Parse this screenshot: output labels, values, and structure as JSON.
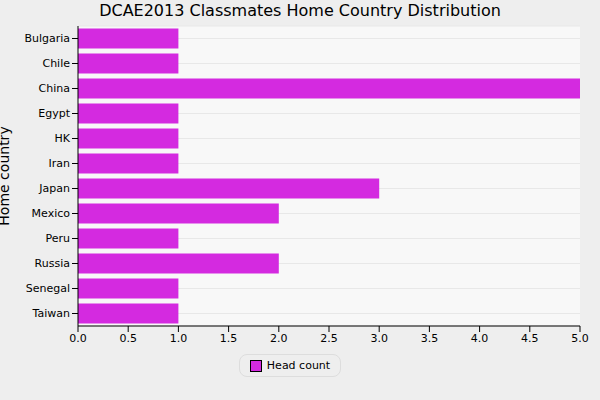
{
  "chart_data": {
    "type": "bar",
    "title": "DCAE2013 Classmates Home Country Distribution",
    "orientation": "horizontal",
    "y_label": "Home country",
    "categories": [
      "Bulgaria",
      "Chile",
      "China",
      "Egypt",
      "HK",
      "Iran",
      "Japan",
      "Mexico",
      "Peru",
      "Russia",
      "Senegal",
      "Taiwan"
    ],
    "series": [
      {
        "name": "Head count",
        "color": "#d42ae0",
        "values": [
          1,
          1,
          5,
          1,
          1,
          1,
          3,
          2,
          1,
          2,
          1,
          1
        ]
      }
    ],
    "xlim": [
      0,
      5
    ],
    "xticks": [
      {
        "value": 0,
        "label": "0.0"
      },
      {
        "value": 0.5,
        "label": "0.5"
      },
      {
        "value": 1,
        "label": "1.0"
      },
      {
        "value": 1.5,
        "label": "1.5"
      },
      {
        "value": 2,
        "label": "2.0"
      },
      {
        "value": 2.5,
        "label": "2.5"
      },
      {
        "value": 3,
        "label": "3.0"
      },
      {
        "value": 3.5,
        "label": "3.5"
      },
      {
        "value": 4,
        "label": "4.0"
      },
      {
        "value": 4.5,
        "label": "4.5"
      },
      {
        "value": 5,
        "label": "5.0"
      }
    ],
    "grid": true,
    "legend": "bottom"
  }
}
